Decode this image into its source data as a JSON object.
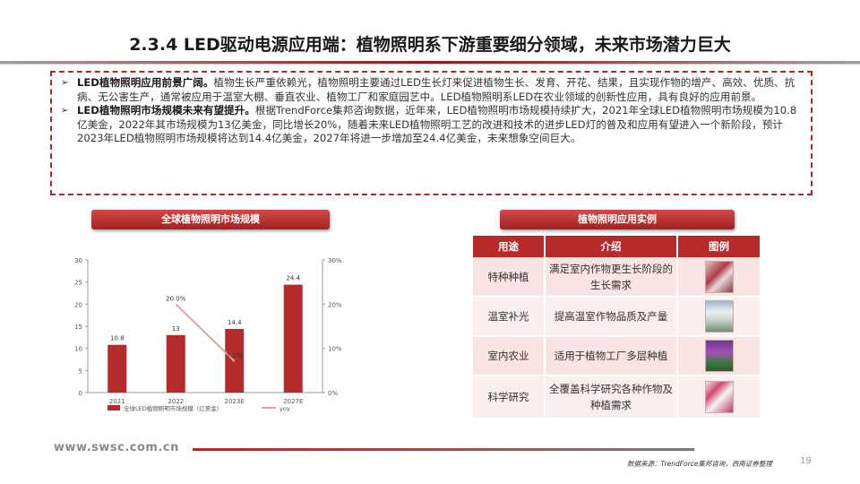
{
  "title": "2.3.4 LED驱动电源应用端：植物照明系下游重要细分领域，未来市场潜力巨大",
  "paragraphs": [
    {
      "bullet": "➢",
      "lead": "LED植物照明应用前景广阔。",
      "text": "植物生长严重依赖光，植物照明主要通过LED生长灯来促进植物生长、发育、开花、结果，且实现作物的增产、高效、优质、抗病、无公害生产，通常被应用于温室大棚、垂直农业、植物工厂和家庭园艺中。LED植物照明系LED在农业领域的创新性应用，具有良好的应用前景。"
    },
    {
      "bullet": "➢",
      "lead": "LED植物照明市场规模未来有望提升。",
      "text": "根据TrendForce集邦咨询数据，近年来，LED植物照明市场规模持续扩大，2021年全球LED植物照明市场规模为10.8亿美金，2022年其市场规模为13亿美金，同比增长20%，随着未来LED植物照明工艺的改进和技术的进步LED灯的普及和应用有望进入一个新阶段，预计2023年LED植物照明市场规模将达到14.4亿美金，2027年将进一步增加至24.4亿美金，未来想象空间巨大。"
    }
  ],
  "left_section_label": "全球植物照明市场规模",
  "right_section_label": "植物照明应用实例",
  "chart_data": {
    "type": "bar",
    "categories": [
      "2021",
      "2022",
      "2023E",
      "2027E"
    ],
    "series": [
      {
        "name": "全球LED植物照明市场规模（亿美金）",
        "type": "bar",
        "axis": "left",
        "values": [
          10.8,
          13,
          14.4,
          24.4
        ],
        "labels": [
          "10.8",
          "13",
          "14.4",
          "24.4"
        ],
        "color": "#b52a2a"
      },
      {
        "name": "yoy",
        "type": "line",
        "axis": "right",
        "values": [
          null,
          20.0,
          7.1,
          null
        ],
        "labels": [
          "",
          "20.0%",
          "7.1%",
          ""
        ],
        "color": "#e8a0a0"
      }
    ],
    "ylim_left": [
      0,
      30
    ],
    "yticks_left": [
      "0",
      "5",
      "10",
      "15",
      "20",
      "25",
      "30"
    ],
    "ylim_right": [
      0,
      30
    ],
    "yticks_right": [
      "0%",
      "10%",
      "20%",
      "30%"
    ],
    "grid": false,
    "legend_position": "bottom"
  },
  "table": {
    "headers": [
      "用途",
      "介绍",
      "图例"
    ],
    "rows": [
      {
        "use": "特种种植",
        "intro": "满足室内作物更生长阶段的生长需求",
        "image": "plant-photo-specialty"
      },
      {
        "use": "温室补光",
        "intro": "提高温室作物品质及产量",
        "image": "greenhouse-photo"
      },
      {
        "use": "室内农业",
        "intro": "适用于植物工厂多层种植",
        "image": "indoor-farm-photo"
      },
      {
        "use": "科学研究",
        "intro": "全覆盖科学研究各种作物及种植需求",
        "image": "research-photo"
      }
    ]
  },
  "footer": {
    "url": "www.swsc.com.cn",
    "source": "数据来源：TrendForce集邦咨询，西南证券整理",
    "page": "19"
  },
  "colors": {
    "accent": "#b52525",
    "bar": "#b52a2a",
    "line": "#e8a0a0"
  }
}
